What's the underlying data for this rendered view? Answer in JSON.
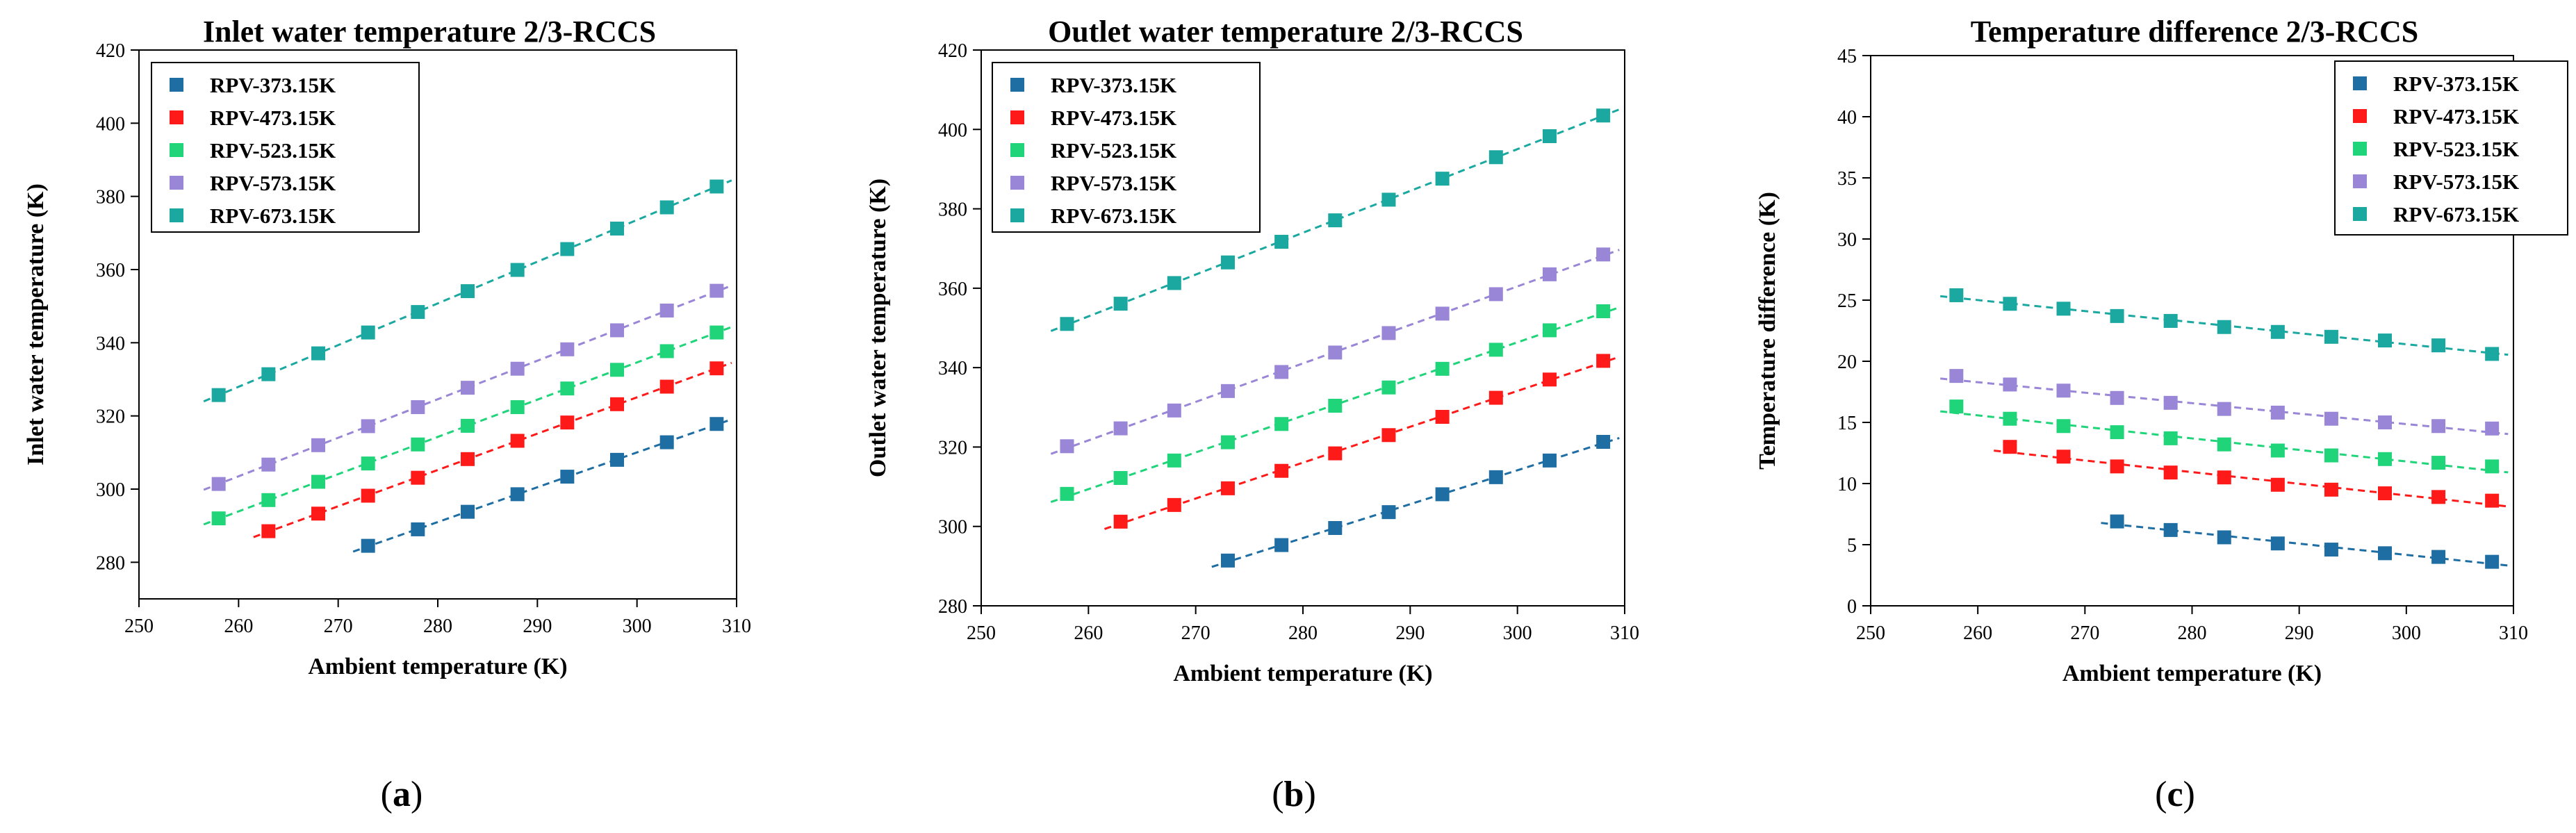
{
  "chart_data": [
    {
      "type": "scatter",
      "panel_label": "a",
      "title": "Inlet water temperature 2/3-RCCS",
      "xlabel": "Ambient temperature (K)",
      "ylabel": "Inlet water temperature (K)",
      "xlim": [
        250,
        310
      ],
      "ylim": [
        270,
        420
      ],
      "xticks": [
        250,
        260,
        270,
        280,
        290,
        300,
        310
      ],
      "yticks": [
        280,
        300,
        320,
        340,
        360,
        380,
        400,
        420
      ],
      "legend_position": "top-left",
      "trendlines": "dashed",
      "series": [
        {
          "name": "RPV-373.15K",
          "color": "#1f6ea3",
          "x": [
            273,
            278,
            283,
            288,
            293,
            298,
            303,
            308
          ],
          "y": [
            284.5,
            289.0,
            293.8,
            298.6,
            303.4,
            308.0,
            312.8,
            317.8
          ]
        },
        {
          "name": "RPV-473.15K",
          "color": "#ff1a1a",
          "x": [
            263,
            268,
            273,
            278,
            283,
            288,
            293,
            298,
            303,
            308
          ],
          "y": [
            288.5,
            293.3,
            298.2,
            303.1,
            308.2,
            313.2,
            318.2,
            323.2,
            328.0,
            333.0
          ]
        },
        {
          "name": "RPV-523.15K",
          "color": "#20d47a",
          "x": [
            258,
            263,
            268,
            273,
            278,
            283,
            288,
            293,
            298,
            303,
            308
          ],
          "y": [
            292.0,
            297.0,
            302.0,
            307.0,
            312.2,
            317.3,
            322.4,
            327.5,
            332.6,
            337.7,
            342.8
          ]
        },
        {
          "name": "RPV-573.15K",
          "color": "#9a86d6",
          "x": [
            258,
            263,
            268,
            273,
            278,
            283,
            288,
            293,
            298,
            303,
            308
          ],
          "y": [
            301.4,
            306.7,
            312.0,
            317.2,
            322.4,
            327.7,
            332.9,
            338.2,
            343.4,
            348.8,
            354.2
          ]
        },
        {
          "name": "RPV-673.15K",
          "color": "#1aa8a0",
          "x": [
            258,
            263,
            268,
            273,
            278,
            283,
            288,
            293,
            298,
            303,
            308
          ],
          "y": [
            325.7,
            331.4,
            337.1,
            342.8,
            348.4,
            354.1,
            359.9,
            365.6,
            371.2,
            377.0,
            382.7
          ]
        }
      ]
    },
    {
      "type": "scatter",
      "panel_label": "b",
      "title": "Outlet water temperature 2/3-RCCS",
      "xlabel": "Ambient temperature (K)",
      "ylabel": "Outlet water temperature (K)",
      "xlim": [
        250,
        310
      ],
      "ylim": [
        280,
        420
      ],
      "xticks": [
        250,
        260,
        270,
        280,
        290,
        300,
        310
      ],
      "yticks": [
        280,
        300,
        320,
        340,
        360,
        380,
        400,
        420
      ],
      "legend_position": "top-left",
      "trendlines": "dashed",
      "series": [
        {
          "name": "RPV-373.15K",
          "color": "#1f6ea3",
          "x": [
            273,
            278,
            283,
            288,
            293,
            298,
            303,
            308
          ],
          "y": [
            291.4,
            295.3,
            299.6,
            303.6,
            308.1,
            312.4,
            316.6,
            321.3
          ]
        },
        {
          "name": "RPV-473.15K",
          "color": "#ff1a1a",
          "x": [
            263,
            268,
            273,
            278,
            283,
            288,
            293,
            298,
            303,
            308
          ],
          "y": [
            301.2,
            305.4,
            309.6,
            314.0,
            318.4,
            323.0,
            327.6,
            332.4,
            337.0,
            341.7
          ]
        },
        {
          "name": "RPV-523.15K",
          "color": "#20d47a",
          "x": [
            258,
            263,
            268,
            273,
            278,
            283,
            288,
            293,
            298,
            303,
            308
          ],
          "y": [
            308.2,
            312.2,
            316.6,
            321.2,
            325.8,
            330.4,
            335.0,
            339.7,
            344.5,
            349.4,
            354.2
          ]
        },
        {
          "name": "RPV-573.15K",
          "color": "#9a86d6",
          "x": [
            258,
            263,
            268,
            273,
            278,
            283,
            288,
            293,
            298,
            303,
            308
          ],
          "y": [
            320.2,
            324.7,
            329.2,
            334.1,
            338.9,
            343.8,
            348.7,
            353.6,
            358.5,
            363.5,
            368.5
          ]
        },
        {
          "name": "RPV-673.15K",
          "color": "#1aa8a0",
          "x": [
            258,
            263,
            268,
            273,
            278,
            283,
            288,
            293,
            298,
            303,
            308
          ],
          "y": [
            351.0,
            356.1,
            361.3,
            366.5,
            371.7,
            377.1,
            382.3,
            387.6,
            393.0,
            398.3,
            403.5
          ]
        }
      ]
    },
    {
      "type": "scatter",
      "panel_label": "c",
      "title": "Temperature difference 2/3-RCCS",
      "xlabel": "Ambient temperature (K)",
      "ylabel": "Temperature difference (K)",
      "xlim": [
        250,
        310
      ],
      "ylim": [
        0,
        45
      ],
      "xticks": [
        250,
        260,
        270,
        280,
        290,
        300,
        310
      ],
      "yticks": [
        0,
        5,
        10,
        15,
        20,
        25,
        30,
        35,
        40,
        45
      ],
      "legend_position": "top-right",
      "trendlines": "dashed",
      "series": [
        {
          "name": "RPV-373.15K",
          "color": "#1f6ea3",
          "x": [
            273,
            278,
            283,
            288,
            293,
            298,
            303,
            308
          ],
          "y": [
            6.9,
            6.2,
            5.6,
            5.1,
            4.6,
            4.3,
            4.0,
            3.6
          ]
        },
        {
          "name": "RPV-473.15K",
          "color": "#ff1a1a",
          "x": [
            263,
            268,
            273,
            278,
            283,
            288,
            293,
            298,
            303,
            308
          ],
          "y": [
            13.0,
            12.2,
            11.4,
            10.9,
            10.5,
            9.9,
            9.5,
            9.2,
            8.9,
            8.6
          ]
        },
        {
          "name": "RPV-523.15K",
          "color": "#20d47a",
          "x": [
            258,
            263,
            268,
            273,
            278,
            283,
            288,
            293,
            298,
            303,
            308
          ],
          "y": [
            16.3,
            15.3,
            14.7,
            14.2,
            13.7,
            13.2,
            12.7,
            12.3,
            12.0,
            11.7,
            11.4
          ]
        },
        {
          "name": "RPV-573.15K",
          "color": "#9a86d6",
          "x": [
            258,
            263,
            268,
            273,
            278,
            283,
            288,
            293,
            298,
            303,
            308
          ],
          "y": [
            18.8,
            18.1,
            17.6,
            17.0,
            16.6,
            16.1,
            15.8,
            15.3,
            15.0,
            14.7,
            14.5
          ]
        },
        {
          "name": "RPV-673.15K",
          "color": "#1aa8a0",
          "x": [
            258,
            263,
            268,
            273,
            278,
            283,
            288,
            293,
            298,
            303,
            308
          ],
          "y": [
            25.4,
            24.7,
            24.3,
            23.7,
            23.3,
            22.8,
            22.4,
            22.0,
            21.7,
            21.3,
            20.6
          ]
        }
      ]
    }
  ]
}
